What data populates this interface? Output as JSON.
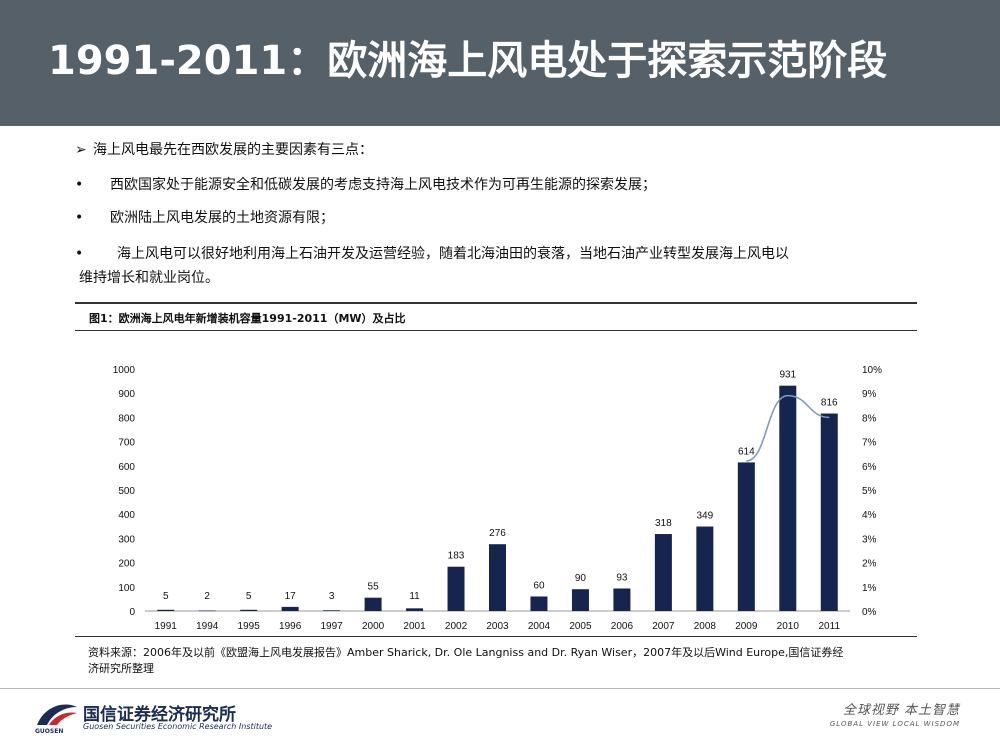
{
  "header": {
    "title": "1991-2011：欧洲海上风电处于探索示范阶段"
  },
  "content": {
    "intro_marker": "➢",
    "intro": "海上风电最先在西欧发展的主要因素有三点：",
    "bullet_marker": "•",
    "bullets": [
      "西欧国家处于能源安全和低碳发展的考虑支持海上风电技术作为可再生能源的探索发展；",
      "欧洲陆上风电发展的土地资源有限；",
      "海上风电可以很好地利用海上石油开发及运营经验，随着北海油田的衰落，当地石油产业转型发展海上风电以"
    ],
    "bullet3_cont": "维持增长和就业岗位。"
  },
  "figure": {
    "title": "图1：欧洲海上风电年新增装机容量1991-2011（MW）及占比",
    "source_line1": "资料来源：2006年及以前《欧盟海上风电发展报告》Amber Sharick, Dr. Ole Langniss and Dr. Ryan Wiser，2007年及以后Wind Europe,国信证券经",
    "source_line2": "济研究所整理"
  },
  "chart_data": {
    "type": "bar",
    "categories": [
      "1991",
      "1994",
      "1995",
      "1996",
      "1997",
      "2000",
      "2001",
      "2002",
      "2003",
      "2004",
      "2005",
      "2006",
      "2007",
      "2008",
      "2009",
      "2010",
      "2011"
    ],
    "series": [
      {
        "values": [
          5,
          2,
          5,
          17,
          3,
          55,
          11,
          183,
          276,
          60,
          90,
          93,
          318,
          349,
          614,
          931,
          816
        ],
        "axis": "left",
        "color": "#15254f"
      },
      {
        "values": [
          null,
          null,
          null,
          null,
          null,
          null,
          null,
          null,
          null,
          null,
          null,
          null,
          null,
          null,
          6.2,
          8.9,
          8.0
        ],
        "axis": "right",
        "color": "#7f9cbf",
        "render": "line"
      }
    ],
    "ylim": [
      0,
      1000
    ],
    "yticks": [
      0,
      100,
      200,
      300,
      400,
      500,
      600,
      700,
      800,
      900,
      1000
    ],
    "y2lim": [
      0,
      10
    ],
    "y2ticks": [
      "0%",
      "1%",
      "2%",
      "3%",
      "4%",
      "5%",
      "6%",
      "7%",
      "8%",
      "9%",
      "10%"
    ],
    "grid": false
  },
  "footer": {
    "logo_name": "国信证券经济研究所",
    "logo_en": "Guosen Securities Economic Research Institute",
    "logo_small": "GUOSEN",
    "slogan_cn": "全球视野  本土智慧",
    "slogan_en": "GLOBAL VIEW   LOCAL WISDOM"
  }
}
